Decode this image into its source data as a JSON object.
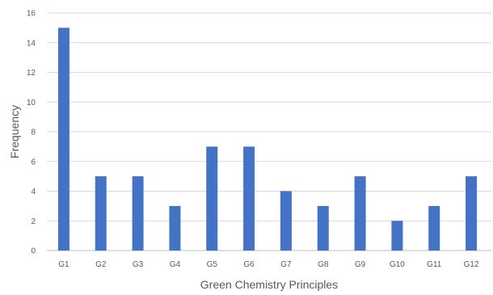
{
  "chart_data": {
    "type": "bar",
    "categories": [
      "G1",
      "G2",
      "G3",
      "G4",
      "G5",
      "G6",
      "G7",
      "G8",
      "G9",
      "G10",
      "G11",
      "G12"
    ],
    "values": [
      15,
      5,
      5,
      3,
      7,
      7,
      4,
      3,
      5,
      2,
      3,
      5
    ],
    "xlabel": "Green Chemistry Principles",
    "ylabel": "Frequency",
    "ylim": [
      0,
      16
    ],
    "yticks": [
      0,
      2,
      4,
      6,
      8,
      10,
      12,
      14,
      16
    ],
    "grid": true,
    "bar_color": "#4472C4"
  }
}
